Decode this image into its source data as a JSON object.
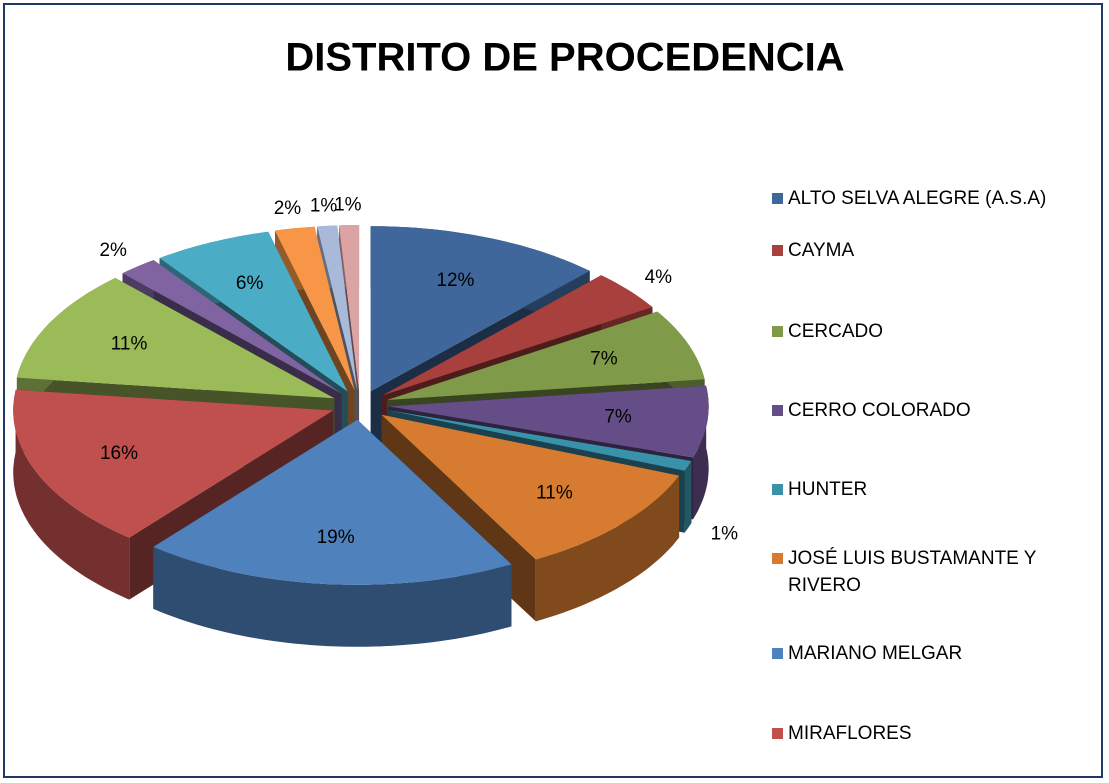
{
  "chart_data": {
    "type": "pie",
    "title": "DISTRITO DE PROCEDENCIA",
    "categories": [
      "ALTO SELVA ALEGRE (A.S.A)",
      "CAYMA",
      "CERCADO",
      "CERRO COLORADO",
      "HUNTER",
      "JOSÉ LUIS BUSTAMANTE Y RIVERO",
      "MARIANO MELGAR",
      "MIRAFLORES",
      null,
      null,
      null,
      null,
      null,
      null
    ],
    "values": [
      12,
      4,
      7,
      7,
      1,
      11,
      19,
      16,
      11,
      2,
      6,
      2,
      1,
      1
    ],
    "value_labels": [
      "12%",
      "4%",
      "7%",
      "7%",
      "1%",
      "11%",
      "19%",
      "16%",
      "11%",
      "2%",
      "6%",
      "2%",
      "1%",
      "1%"
    ],
    "colors": [
      "#3f679c",
      "#a8403d",
      "#7f9a48",
      "#654d87",
      "#3a91aa",
      "#d67b30",
      "#4f81bd",
      "#c0504d",
      "#9bbb59",
      "#8064a2",
      "#4bacc6",
      "#f79646",
      "#a9b9da",
      "#dba3a3"
    ],
    "legend": "right"
  }
}
